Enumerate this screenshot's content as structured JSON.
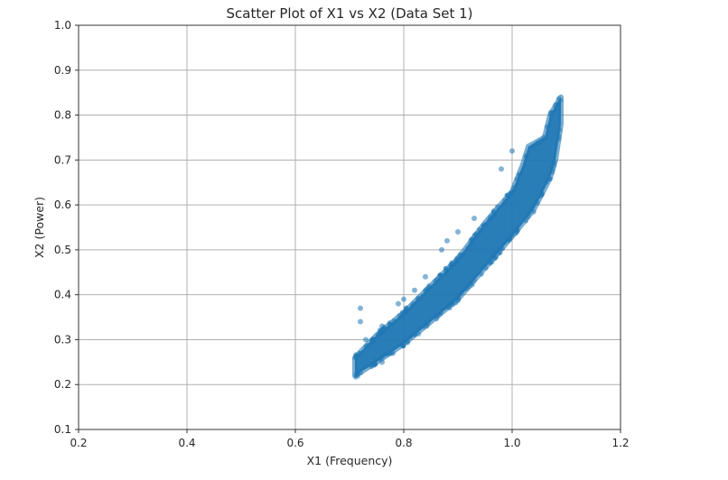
{
  "chart_data": {
    "type": "scatter",
    "title": "Scatter Plot of X1 vs X2 (Data Set 1)",
    "xlabel": "X1 (Frequency)",
    "ylabel": "X2 (Power)",
    "xlim": [
      0.2,
      1.2
    ],
    "ylim": [
      0.1,
      1.0
    ],
    "xticks": [
      "0.2",
      "0.4",
      "0.6",
      "0.8",
      "1.0",
      "1.2"
    ],
    "yticks": [
      "0.1",
      "0.2",
      "0.3",
      "0.4",
      "0.5",
      "0.6",
      "0.7",
      "0.8",
      "0.9",
      "1.0"
    ],
    "grid": true,
    "legend": null,
    "marker_color": "#1f77b4",
    "marker_alpha": 0.5,
    "series": [
      {
        "name": "Data Set 1",
        "description": "Dense band of points increasing nonlinearly; X1 approx 0.71-1.09, X2 approx 0.22-0.84",
        "band_upper_edge": [
          [
            0.71,
            0.26
          ],
          [
            0.75,
            0.31
          ],
          [
            0.8,
            0.36
          ],
          [
            0.85,
            0.42
          ],
          [
            0.9,
            0.48
          ],
          [
            0.95,
            0.56
          ],
          [
            1.0,
            0.63
          ],
          [
            1.02,
            0.69
          ],
          [
            1.03,
            0.73
          ],
          [
            1.06,
            0.75
          ],
          [
            1.07,
            0.8
          ],
          [
            1.09,
            0.84
          ]
        ],
        "band_lower_edge": [
          [
            0.71,
            0.22
          ],
          [
            0.75,
            0.25
          ],
          [
            0.8,
            0.29
          ],
          [
            0.85,
            0.34
          ],
          [
            0.9,
            0.39
          ],
          [
            0.95,
            0.46
          ],
          [
            1.0,
            0.53
          ],
          [
            1.04,
            0.59
          ],
          [
            1.07,
            0.66
          ],
          [
            1.08,
            0.7
          ],
          [
            1.09,
            0.78
          ]
        ],
        "outliers": [
          [
            0.72,
            0.37
          ],
          [
            0.72,
            0.34
          ],
          [
            0.73,
            0.3
          ],
          [
            0.76,
            0.33
          ],
          [
            0.79,
            0.38
          ],
          [
            0.8,
            0.39
          ],
          [
            0.82,
            0.41
          ],
          [
            0.84,
            0.44
          ],
          [
            0.87,
            0.5
          ],
          [
            0.88,
            0.52
          ],
          [
            0.9,
            0.54
          ],
          [
            0.93,
            0.57
          ],
          [
            0.98,
            0.68
          ],
          [
            1.0,
            0.72
          ],
          [
            0.78,
            0.27
          ],
          [
            0.76,
            0.25
          ]
        ]
      }
    ]
  }
}
